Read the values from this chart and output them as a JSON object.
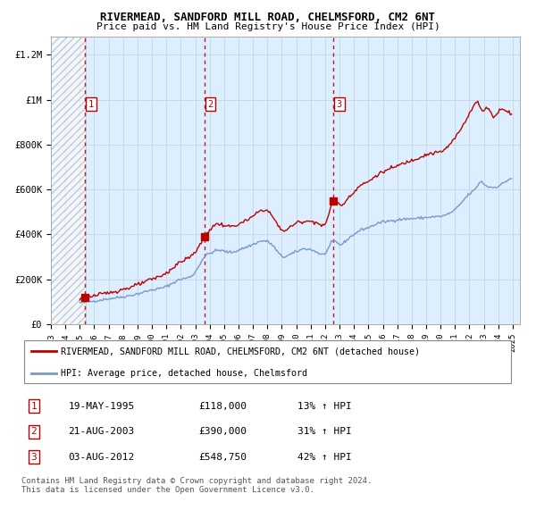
{
  "title": "RIVERMEAD, SANDFORD MILL ROAD, CHELMSFORD, CM2 6NT",
  "subtitle": "Price paid vs. HM Land Registry's House Price Index (HPI)",
  "title_fontsize": 9.5,
  "subtitle_fontsize": 8.5,
  "ylabel_ticks": [
    "£0",
    "£200K",
    "£400K",
    "£600K",
    "£800K",
    "£1M",
    "£1.2M"
  ],
  "ytick_values": [
    0,
    200000,
    400000,
    600000,
    800000,
    1000000,
    1200000
  ],
  "ylim": [
    0,
    1280000
  ],
  "xlim_start": 1993.0,
  "xlim_end": 2025.5,
  "hatch_end": 1995.4,
  "sale_points": [
    {
      "year": 1995.38,
      "price": 118000,
      "label": "1"
    },
    {
      "year": 2003.64,
      "price": 390000,
      "label": "2"
    },
    {
      "year": 2012.59,
      "price": 548750,
      "label": "3"
    }
  ],
  "sale_table": [
    {
      "num": "1",
      "date": "19-MAY-1995",
      "price": "£118,000",
      "pct": "13% ↑ HPI"
    },
    {
      "num": "2",
      "date": "21-AUG-2003",
      "price": "£390,000",
      "pct": "31% ↑ HPI"
    },
    {
      "num": "3",
      "date": "03-AUG-2012",
      "price": "£548,750",
      "pct": "42% ↑ HPI"
    }
  ],
  "red_line_color": "#bb0000",
  "blue_line_color": "#7799cc",
  "grid_color": "#c8d8e8",
  "bg_color": "#ddeeff",
  "legend_label_red": "RIVERMEAD, SANDFORD MILL ROAD, CHELMSFORD, CM2 6NT (detached house)",
  "legend_label_blue": "HPI: Average price, detached house, Chelmsford",
  "footer": "Contains HM Land Registry data © Crown copyright and database right 2024.\nThis data is licensed under the Open Government Licence v3.0."
}
